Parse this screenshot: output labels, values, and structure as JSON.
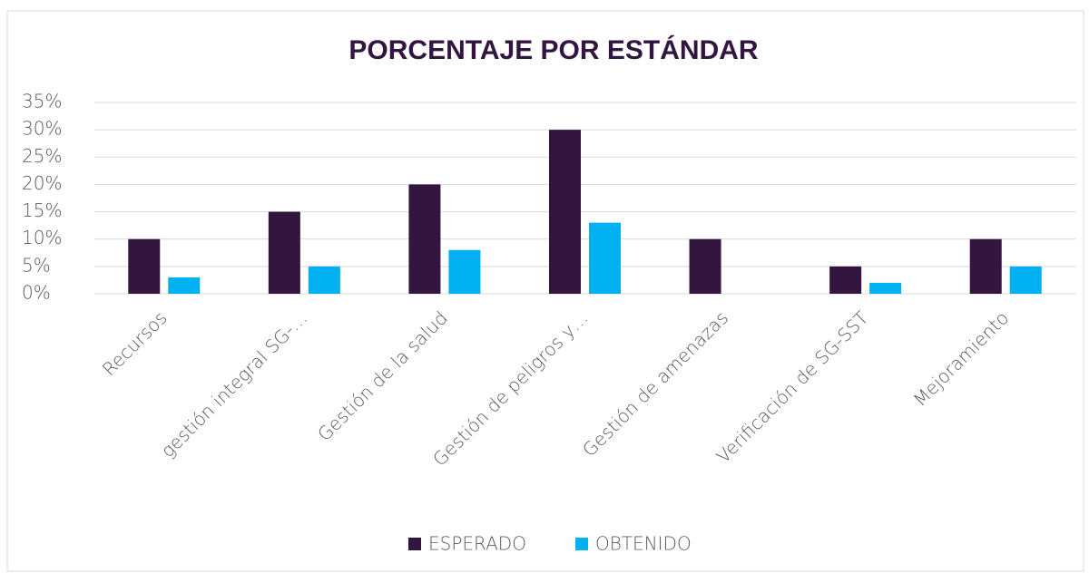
{
  "chart_data": {
    "type": "bar",
    "title": "PORCENTAJE POR ESTÁNDAR",
    "categories": [
      "Recursos",
      "gestión integral SG-…",
      "Gestión de la salud",
      "Gestión de peligros y…",
      "Gestión de amenazas",
      "Verificación de SG-SST",
      "Mejoramiento"
    ],
    "series": [
      {
        "name": "ESPERADO",
        "color": "#32163f",
        "values": [
          10,
          15,
          20,
          30,
          10,
          5,
          10
        ]
      },
      {
        "name": "OBTENIDO",
        "color": "#00b0f0",
        "values": [
          3,
          5,
          8,
          13,
          0,
          2,
          5
        ]
      }
    ],
    "ylim": [
      0,
      35
    ],
    "yticks": [
      {
        "value": 0,
        "label": "0%"
      },
      {
        "value": 5,
        "label": "5%"
      },
      {
        "value": 10,
        "label": "10%"
      },
      {
        "value": 15,
        "label": "15%"
      },
      {
        "value": 20,
        "label": "20%"
      },
      {
        "value": 25,
        "label": "25%"
      },
      {
        "value": 30,
        "label": "30%"
      },
      {
        "value": 35,
        "label": "35%"
      }
    ],
    "grid": true,
    "legend": "bottom"
  }
}
